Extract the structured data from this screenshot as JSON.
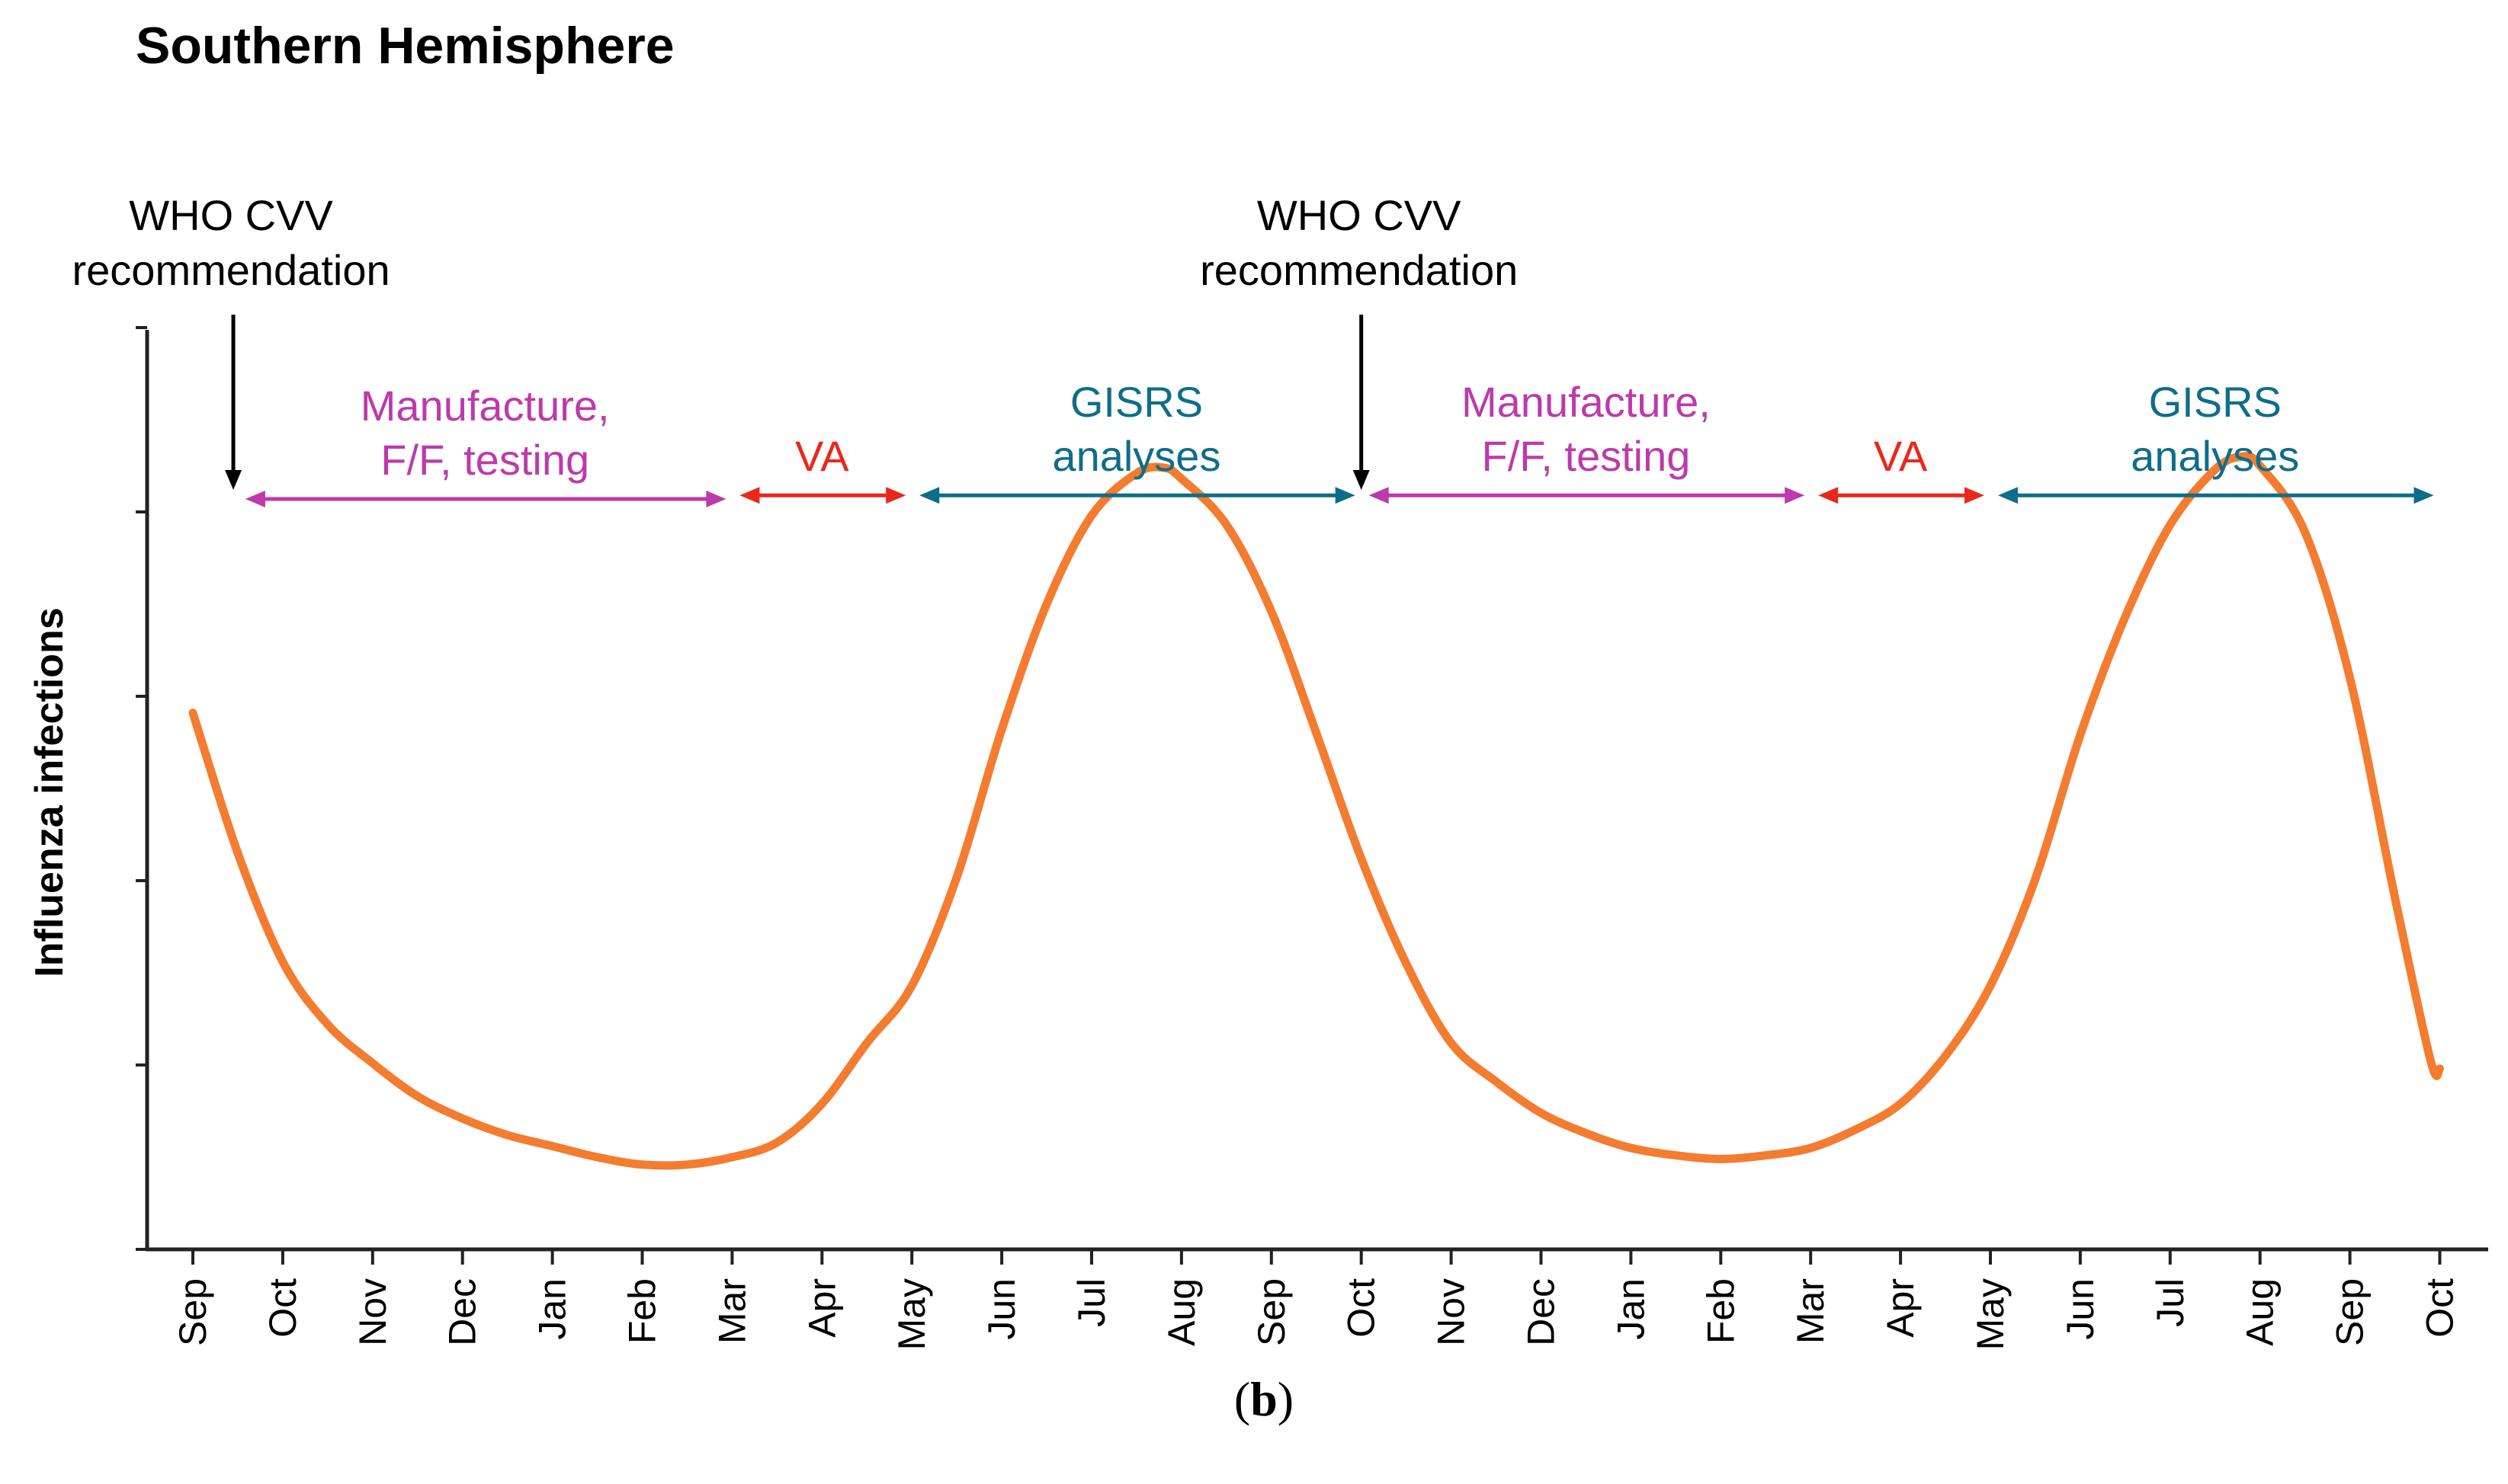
{
  "chart_data": {
    "type": "line",
    "title": "Southern Hemisphere",
    "ylabel": "Influenza infections",
    "xlabel": "",
    "panel_label_open": "(",
    "panel_label_letter": "b",
    "panel_label_close": ")",
    "categories": [
      "Sep",
      "Oct",
      "Nov",
      "Dec",
      "Jan",
      "Feb",
      "Mar",
      "Apr",
      "May",
      "Jun",
      "Jul",
      "Aug",
      "Sep",
      "Oct",
      "Nov",
      "Dec",
      "Jan",
      "Feb",
      "Mar",
      "Apr",
      "May",
      "Jun",
      "Jul",
      "Aug",
      "Sep",
      "Oct"
    ],
    "ylim": [
      0,
      5
    ],
    "y_ticks": [
      0,
      1,
      2,
      3,
      4,
      5
    ],
    "y_tick_labels_shown": false,
    "series": [
      {
        "name": "Influenza infections",
        "color": "#f47c30",
        "points": [
          [
            0.0,
            2.91
          ],
          [
            0.5,
            2.15
          ],
          [
            1.0,
            1.56
          ],
          [
            1.5,
            1.22
          ],
          [
            2.0,
            1.01
          ],
          [
            2.5,
            0.83
          ],
          [
            3.0,
            0.71
          ],
          [
            3.5,
            0.62
          ],
          [
            4.0,
            0.56
          ],
          [
            4.5,
            0.5
          ],
          [
            5.0,
            0.46
          ],
          [
            5.5,
            0.46
          ],
          [
            6.0,
            0.5
          ],
          [
            6.5,
            0.58
          ],
          [
            7.0,
            0.79
          ],
          [
            7.5,
            1.12
          ],
          [
            8.0,
            1.43
          ],
          [
            8.5,
            2.02
          ],
          [
            9.0,
            2.82
          ],
          [
            9.5,
            3.5
          ],
          [
            10.0,
            3.98
          ],
          [
            10.5,
            4.21
          ],
          [
            10.8,
            4.24
          ],
          [
            11.0,
            4.18
          ],
          [
            11.5,
            3.93
          ],
          [
            12.0,
            3.46
          ],
          [
            12.5,
            2.8
          ],
          [
            13.0,
            2.12
          ],
          [
            13.5,
            1.55
          ],
          [
            14.0,
            1.12
          ],
          [
            14.5,
            0.91
          ],
          [
            15.0,
            0.74
          ],
          [
            15.5,
            0.63
          ],
          [
            16.0,
            0.55
          ],
          [
            16.5,
            0.51
          ],
          [
            17.0,
            0.49
          ],
          [
            17.5,
            0.51
          ],
          [
            18.0,
            0.55
          ],
          [
            18.5,
            0.65
          ],
          [
            19.0,
            0.79
          ],
          [
            19.5,
            1.05
          ],
          [
            20.0,
            1.43
          ],
          [
            20.5,
            2.01
          ],
          [
            21.0,
            2.79
          ],
          [
            21.5,
            3.43
          ],
          [
            22.0,
            3.93
          ],
          [
            22.5,
            4.23
          ],
          [
            22.8,
            4.3
          ],
          [
            23.0,
            4.25
          ],
          [
            23.5,
            3.89
          ],
          [
            24.0,
            3.1
          ],
          [
            24.5,
            1.91
          ],
          [
            24.9,
            1.02
          ],
          [
            25.0,
            0.98
          ]
        ]
      }
    ],
    "markers": [
      {
        "label_line1": "WHO CVV",
        "label_line2": "recommendation",
        "x": 0.45,
        "y_from": 5.0,
        "y_to": 4.12,
        "color": "#000000"
      },
      {
        "label_line1": "WHO CVV",
        "label_line2": "recommendation",
        "x": 13.0,
        "y_from": 5.0,
        "y_to": 4.12,
        "color": "#000000"
      }
    ],
    "intervals": [
      {
        "label_line1": "Manufacture,",
        "label_line2": "F/F, testing",
        "x_start": 0.5,
        "x_end": 6.0,
        "y": 4.07,
        "color": "#bd3aab",
        "bold": false
      },
      {
        "label_line1": "VA",
        "label_line2": "",
        "x_start": 6.0,
        "x_end": 8.0,
        "y": 4.09,
        "color": "#e8281c",
        "bold": false
      },
      {
        "label_line1": "GISRS",
        "label_line2": "analyses",
        "x_start": 8.0,
        "x_end": 13.0,
        "y": 4.09,
        "color": "#0e6d8a",
        "bold": false
      },
      {
        "label_line1": "Manufacture,",
        "label_line2": "F/F, testing",
        "x_start": 13.0,
        "x_end": 18.0,
        "y": 4.09,
        "color": "#bd3aab",
        "bold": false
      },
      {
        "label_line1": "VA",
        "label_line2": "",
        "x_start": 18.0,
        "x_end": 20.0,
        "y": 4.09,
        "color": "#e8281c",
        "bold": false
      },
      {
        "label_line1": "GISRS",
        "label_line2": "analyses",
        "x_start": 20.0,
        "x_end": 25.0,
        "y": 4.09,
        "color": "#0e6d8a",
        "bold": false
      }
    ],
    "colors": {
      "axis": "#222222",
      "text": "#000000",
      "curve": "#f47c30"
    },
    "grid": false,
    "legend": "none"
  }
}
